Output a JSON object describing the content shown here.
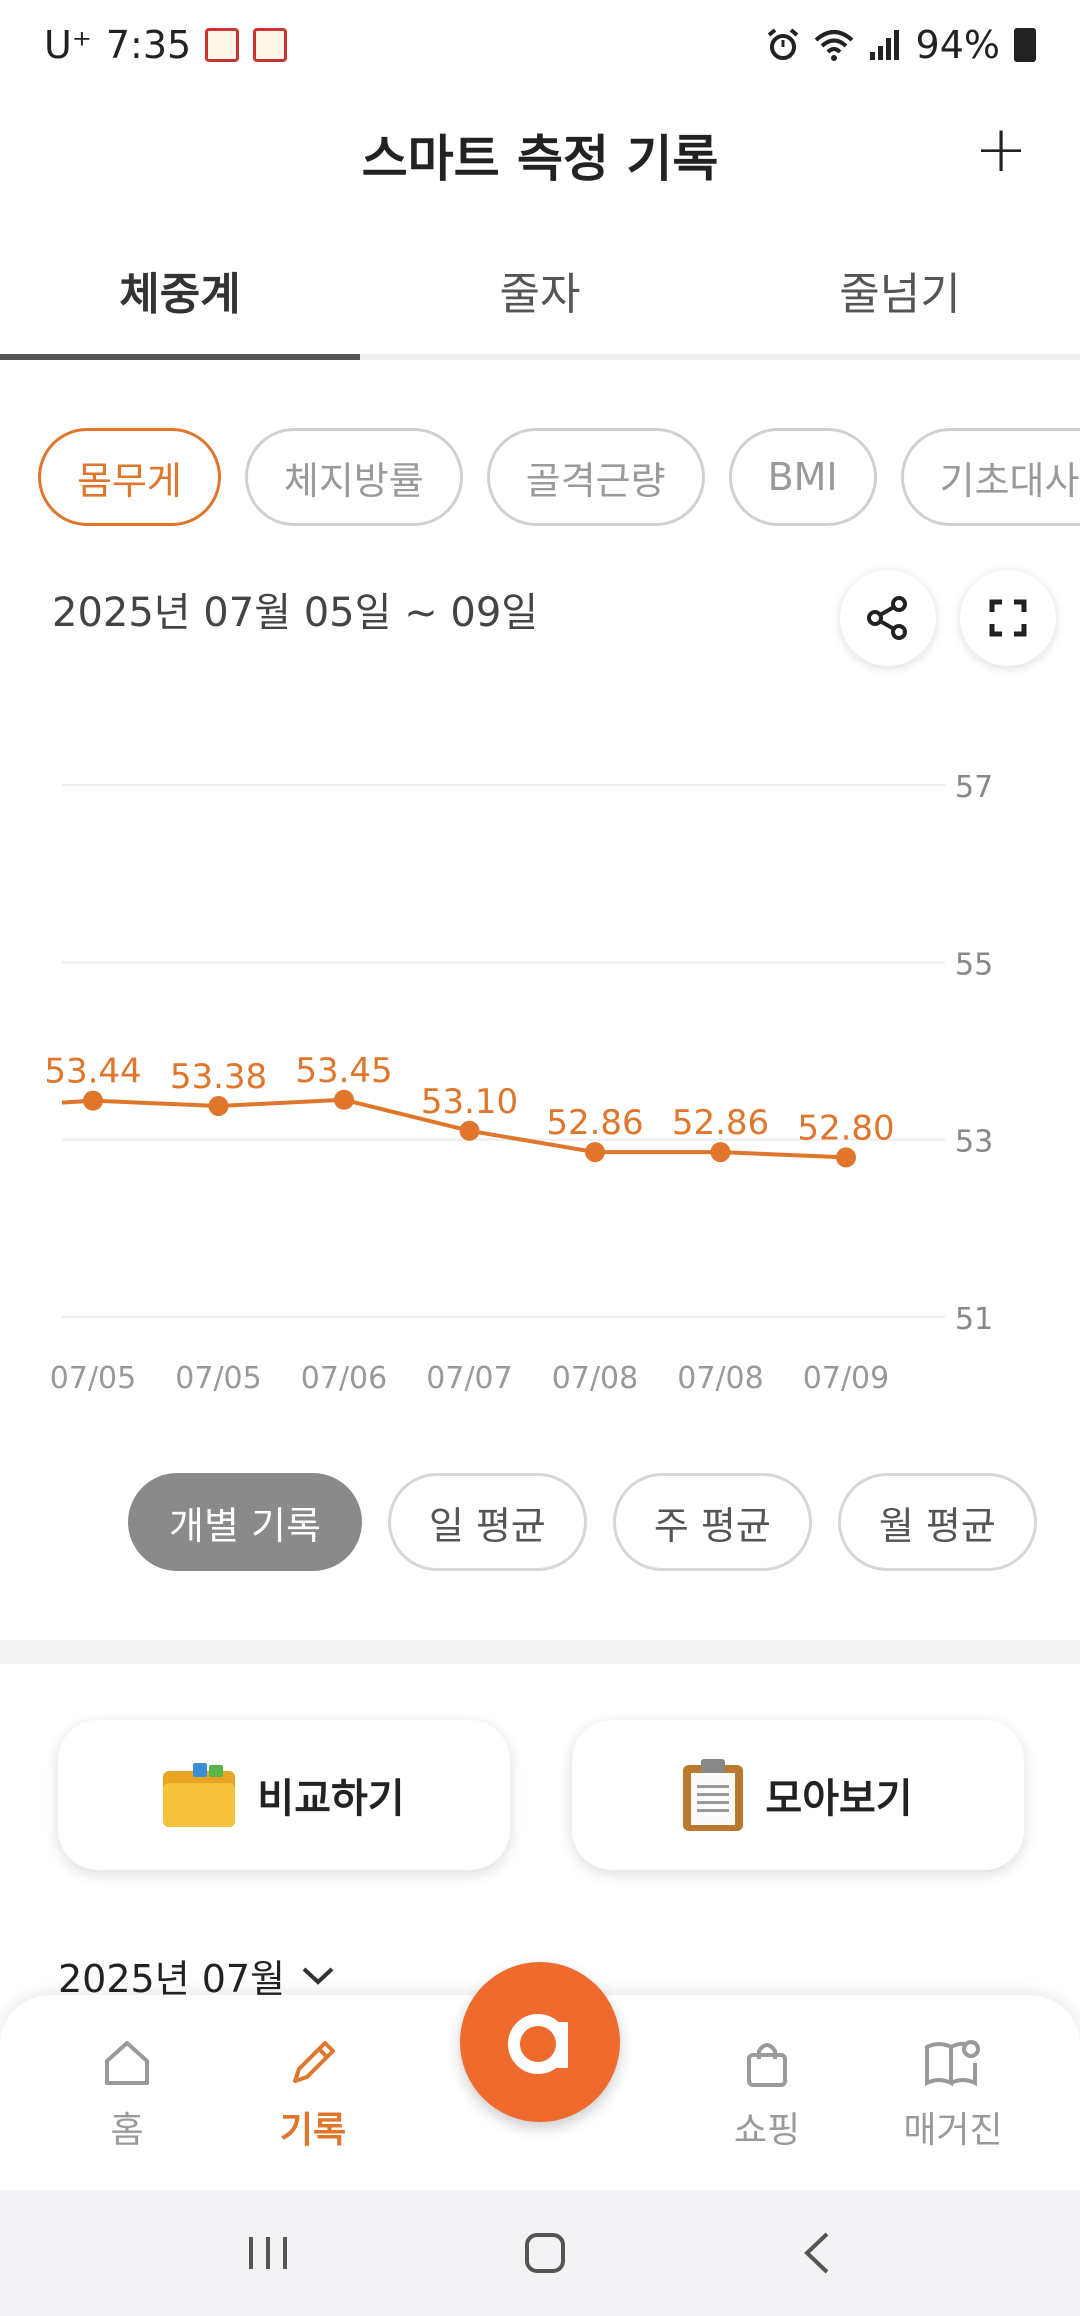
{
  "status": {
    "carrier": "U⁺",
    "time": "7:35",
    "battery": "94%"
  },
  "header": {
    "title": "스마트 측정 기록",
    "add_label": "+"
  },
  "tabs": [
    {
      "label": "체중계",
      "active": true
    },
    {
      "label": "줄자",
      "active": false
    },
    {
      "label": "줄넘기",
      "active": false
    }
  ],
  "chips": [
    {
      "label": "몸무게",
      "active": true
    },
    {
      "label": "체지방률",
      "active": false
    },
    {
      "label": "골격근량",
      "active": false
    },
    {
      "label": "BMI",
      "active": false
    },
    {
      "label": "기초대사량",
      "active": false
    }
  ],
  "date_range": "2025년 07월 05일 ~ 09일",
  "chart_data": {
    "type": "line",
    "categories": [
      "07/05",
      "07/05",
      "07/06",
      "07/07",
      "07/08",
      "07/08",
      "07/09"
    ],
    "values": [
      53.44,
      53.38,
      53.45,
      53.1,
      52.86,
      52.86,
      52.8
    ],
    "labels": [
      "53.44",
      "53.38",
      "53.45",
      "53.10",
      "52.86",
      "52.86",
      "52.80"
    ],
    "yticks": [
      "57",
      "55",
      "53",
      "51"
    ],
    "ylim": [
      51,
      57
    ],
    "grid": true,
    "color": "#e0752c"
  },
  "segments": [
    {
      "label": "개별 기록",
      "active": true
    },
    {
      "label": "일 평균",
      "active": false
    },
    {
      "label": "주 평균",
      "active": false
    },
    {
      "label": "월 평균",
      "active": false
    }
  ],
  "cards": {
    "compare_label": "비교하기",
    "collect_label": "모아보기"
  },
  "month_select": "2025년 07월",
  "nav": {
    "home": "홈",
    "record": "기록",
    "shop": "쇼핑",
    "magazine": "매거진"
  },
  "colors": {
    "accent": "#e0752c",
    "fab": "#ef6b2d"
  }
}
